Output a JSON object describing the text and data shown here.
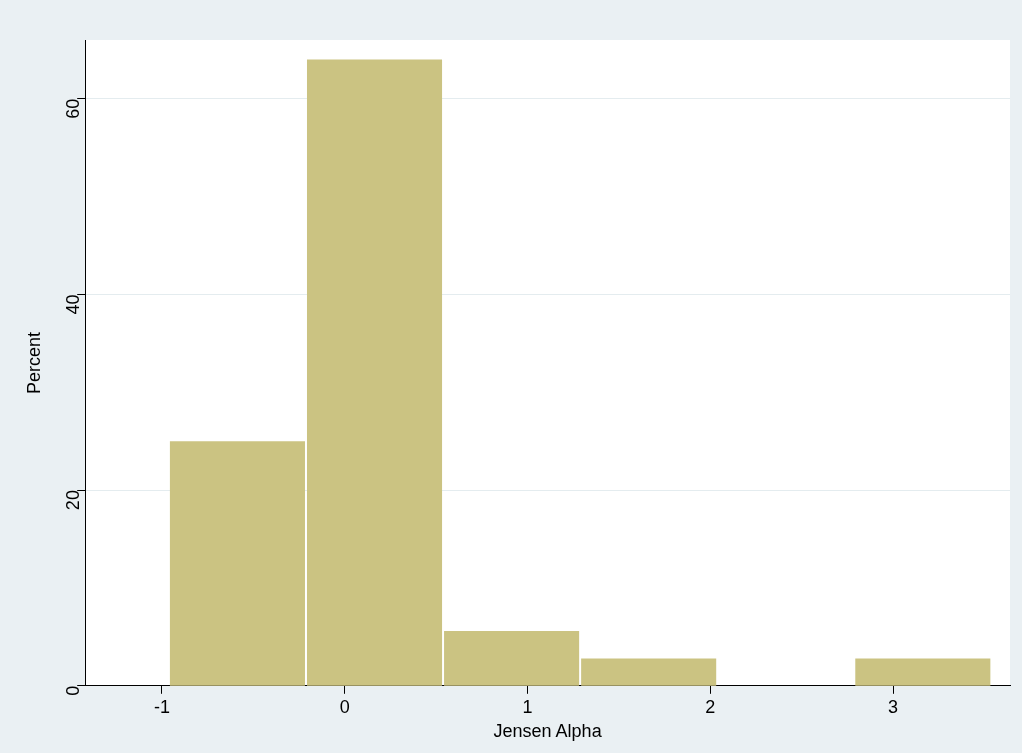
{
  "chart_data": {
    "type": "histogram",
    "xlabel": "Jensen Alpha",
    "ylabel": "Percent",
    "bins": [
      -0.962,
      -0.212,
      0.538,
      1.288,
      2.038,
      2.788,
      3.538
    ],
    "values": [
      25,
      64,
      5.6,
      2.8,
      0,
      2.8
    ],
    "color": "#cbc382",
    "xlim": [
      -1.42,
      3.64
    ],
    "xticks": [
      -1,
      0,
      1,
      2,
      3
    ],
    "ylim": [
      0,
      66
    ],
    "yticks": [
      0,
      20,
      40,
      60
    ],
    "grid": "y",
    "legend": false
  }
}
